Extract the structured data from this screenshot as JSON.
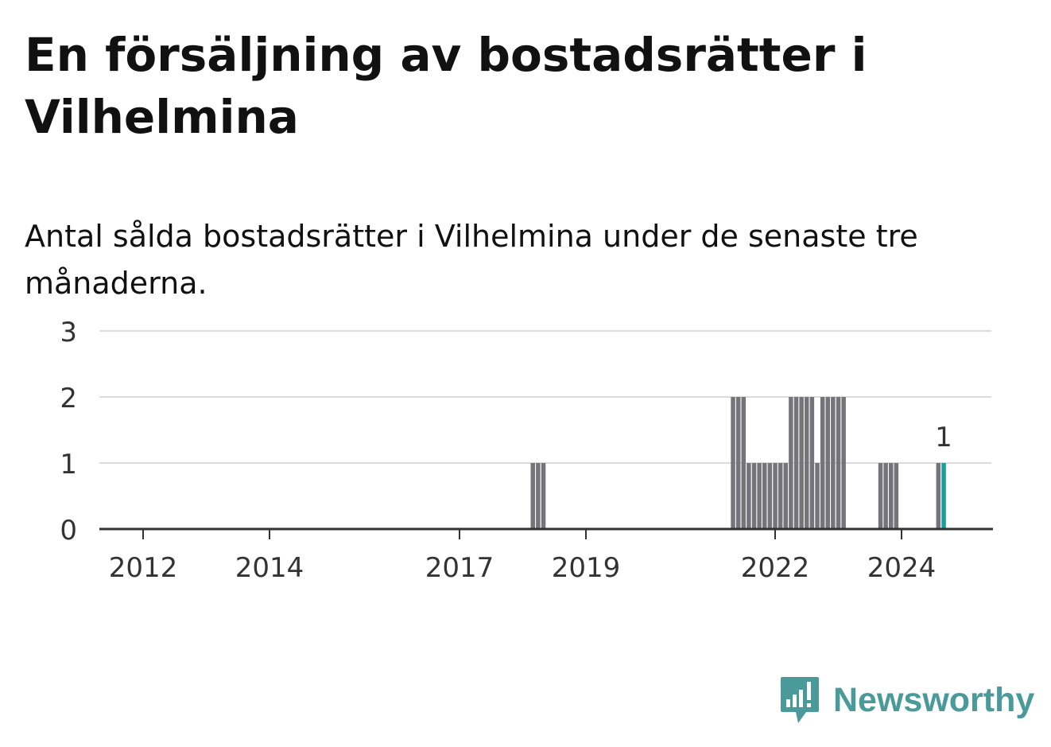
{
  "header": {
    "title": "En försäljning av bostadsrätter i Vilhelmina",
    "subtitle": "Antal sålda bostadsrätter i Vilhelmina under de senaste tre månaderna."
  },
  "brand": {
    "name": "Newsworthy",
    "icon": "newsworthy-logo-icon",
    "color": "#4a9a9a"
  },
  "colors": {
    "bar": "#75747a",
    "highlight": "#1a9e99",
    "grid": "#dcdcdc",
    "axis": "#333333"
  },
  "chart_data": {
    "type": "bar",
    "ylim": [
      0,
      3
    ],
    "y_ticks": [
      "0",
      "1",
      "2",
      "3"
    ],
    "x_tick_labels": [
      "2012",
      "2014",
      "2017",
      "2019",
      "2022",
      "2024"
    ],
    "grid": true,
    "highlight_label": "1",
    "series": [
      {
        "values": [
          {
            "month": "2018-03",
            "value": 1
          },
          {
            "month": "2018-04",
            "value": 1
          },
          {
            "month": "2018-05",
            "value": 1
          },
          {
            "month": "2021-05",
            "value": 2
          },
          {
            "month": "2021-06",
            "value": 2
          },
          {
            "month": "2021-07",
            "value": 2
          },
          {
            "month": "2021-08",
            "value": 1
          },
          {
            "month": "2021-09",
            "value": 1
          },
          {
            "month": "2021-10",
            "value": 1
          },
          {
            "month": "2021-11",
            "value": 1
          },
          {
            "month": "2021-12",
            "value": 1
          },
          {
            "month": "2022-01",
            "value": 1
          },
          {
            "month": "2022-02",
            "value": 1
          },
          {
            "month": "2022-03",
            "value": 1
          },
          {
            "month": "2022-04",
            "value": 2
          },
          {
            "month": "2022-05",
            "value": 2
          },
          {
            "month": "2022-06",
            "value": 2
          },
          {
            "month": "2022-07",
            "value": 2
          },
          {
            "month": "2022-08",
            "value": 2
          },
          {
            "month": "2022-09",
            "value": 1
          },
          {
            "month": "2022-10",
            "value": 2
          },
          {
            "month": "2022-11",
            "value": 2
          },
          {
            "month": "2022-12",
            "value": 2
          },
          {
            "month": "2023-01",
            "value": 2
          },
          {
            "month": "2023-02",
            "value": 2
          },
          {
            "month": "2023-09",
            "value": 1
          },
          {
            "month": "2023-10",
            "value": 1
          },
          {
            "month": "2023-11",
            "value": 1
          },
          {
            "month": "2023-12",
            "value": 1
          },
          {
            "month": "2024-08",
            "value": 1
          },
          {
            "month": "2024-09",
            "value": 1
          }
        ]
      }
    ],
    "highlight_month": "2024-09"
  }
}
